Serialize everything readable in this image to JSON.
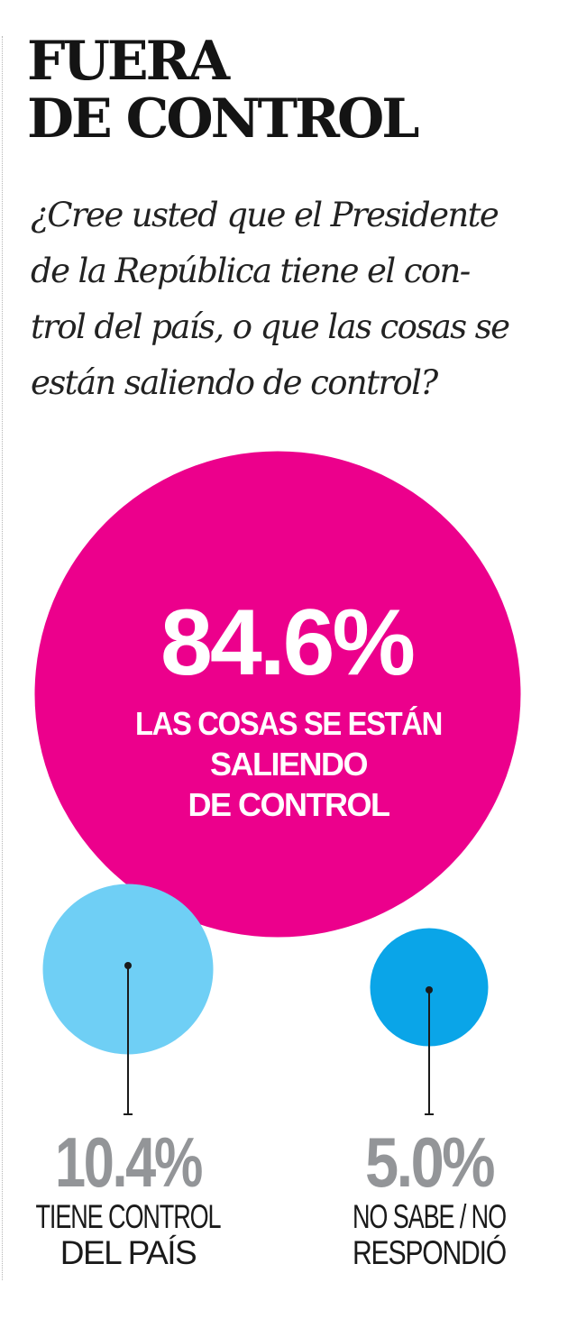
{
  "title": {
    "line1": "FUERA",
    "line2": "DE CONTROL"
  },
  "question": {
    "lines": [
      "¿Cree usted que el Presidente",
      "de la República tiene el con-",
      "trol del país, o que las cosas se",
      "están saliendo de control?"
    ]
  },
  "colors": {
    "magenta": "#ec008c",
    "light_blue": "#6fcff5",
    "blue": "#0aa5e8",
    "gray_percent": "#939598",
    "dark_text": "#1a1a1a"
  },
  "chart_data": {
    "type": "bubble",
    "title": "FUERA DE CONTROL",
    "unit": "%",
    "categories": [
      "LAS COSAS SE ESTÁN SALIENDO DE CONTROL",
      "TIENE CONTROL DEL PAÍS",
      "NO SABE / NO RESPONDIÓ"
    ],
    "values": [
      84.6,
      10.4,
      5.0
    ],
    "items": [
      {
        "category": "LAS COSAS SE ESTÁN SALIENDO DE CONTROL",
        "value": 84.6,
        "value_label": "84.6%",
        "label_lines": [
          "LAS COSAS SE ESTÁN",
          "SALIENDO",
          "DE CONTROL"
        ],
        "color": "#ec008c"
      },
      {
        "category": "TIENE CONTROL DEL PAÍS",
        "value": 10.4,
        "value_label": "10.4%",
        "label_lines": [
          "TIENE CONTROL",
          "DEL PAÍS"
        ],
        "color": "#6fcff5"
      },
      {
        "category": "NO SABE / NO RESPONDIÓ",
        "value": 5.0,
        "value_label": "5.0%",
        "label_lines": [
          "NO SABE / NO",
          "RESPONDIÓ"
        ],
        "color": "#0aa5e8"
      }
    ]
  }
}
